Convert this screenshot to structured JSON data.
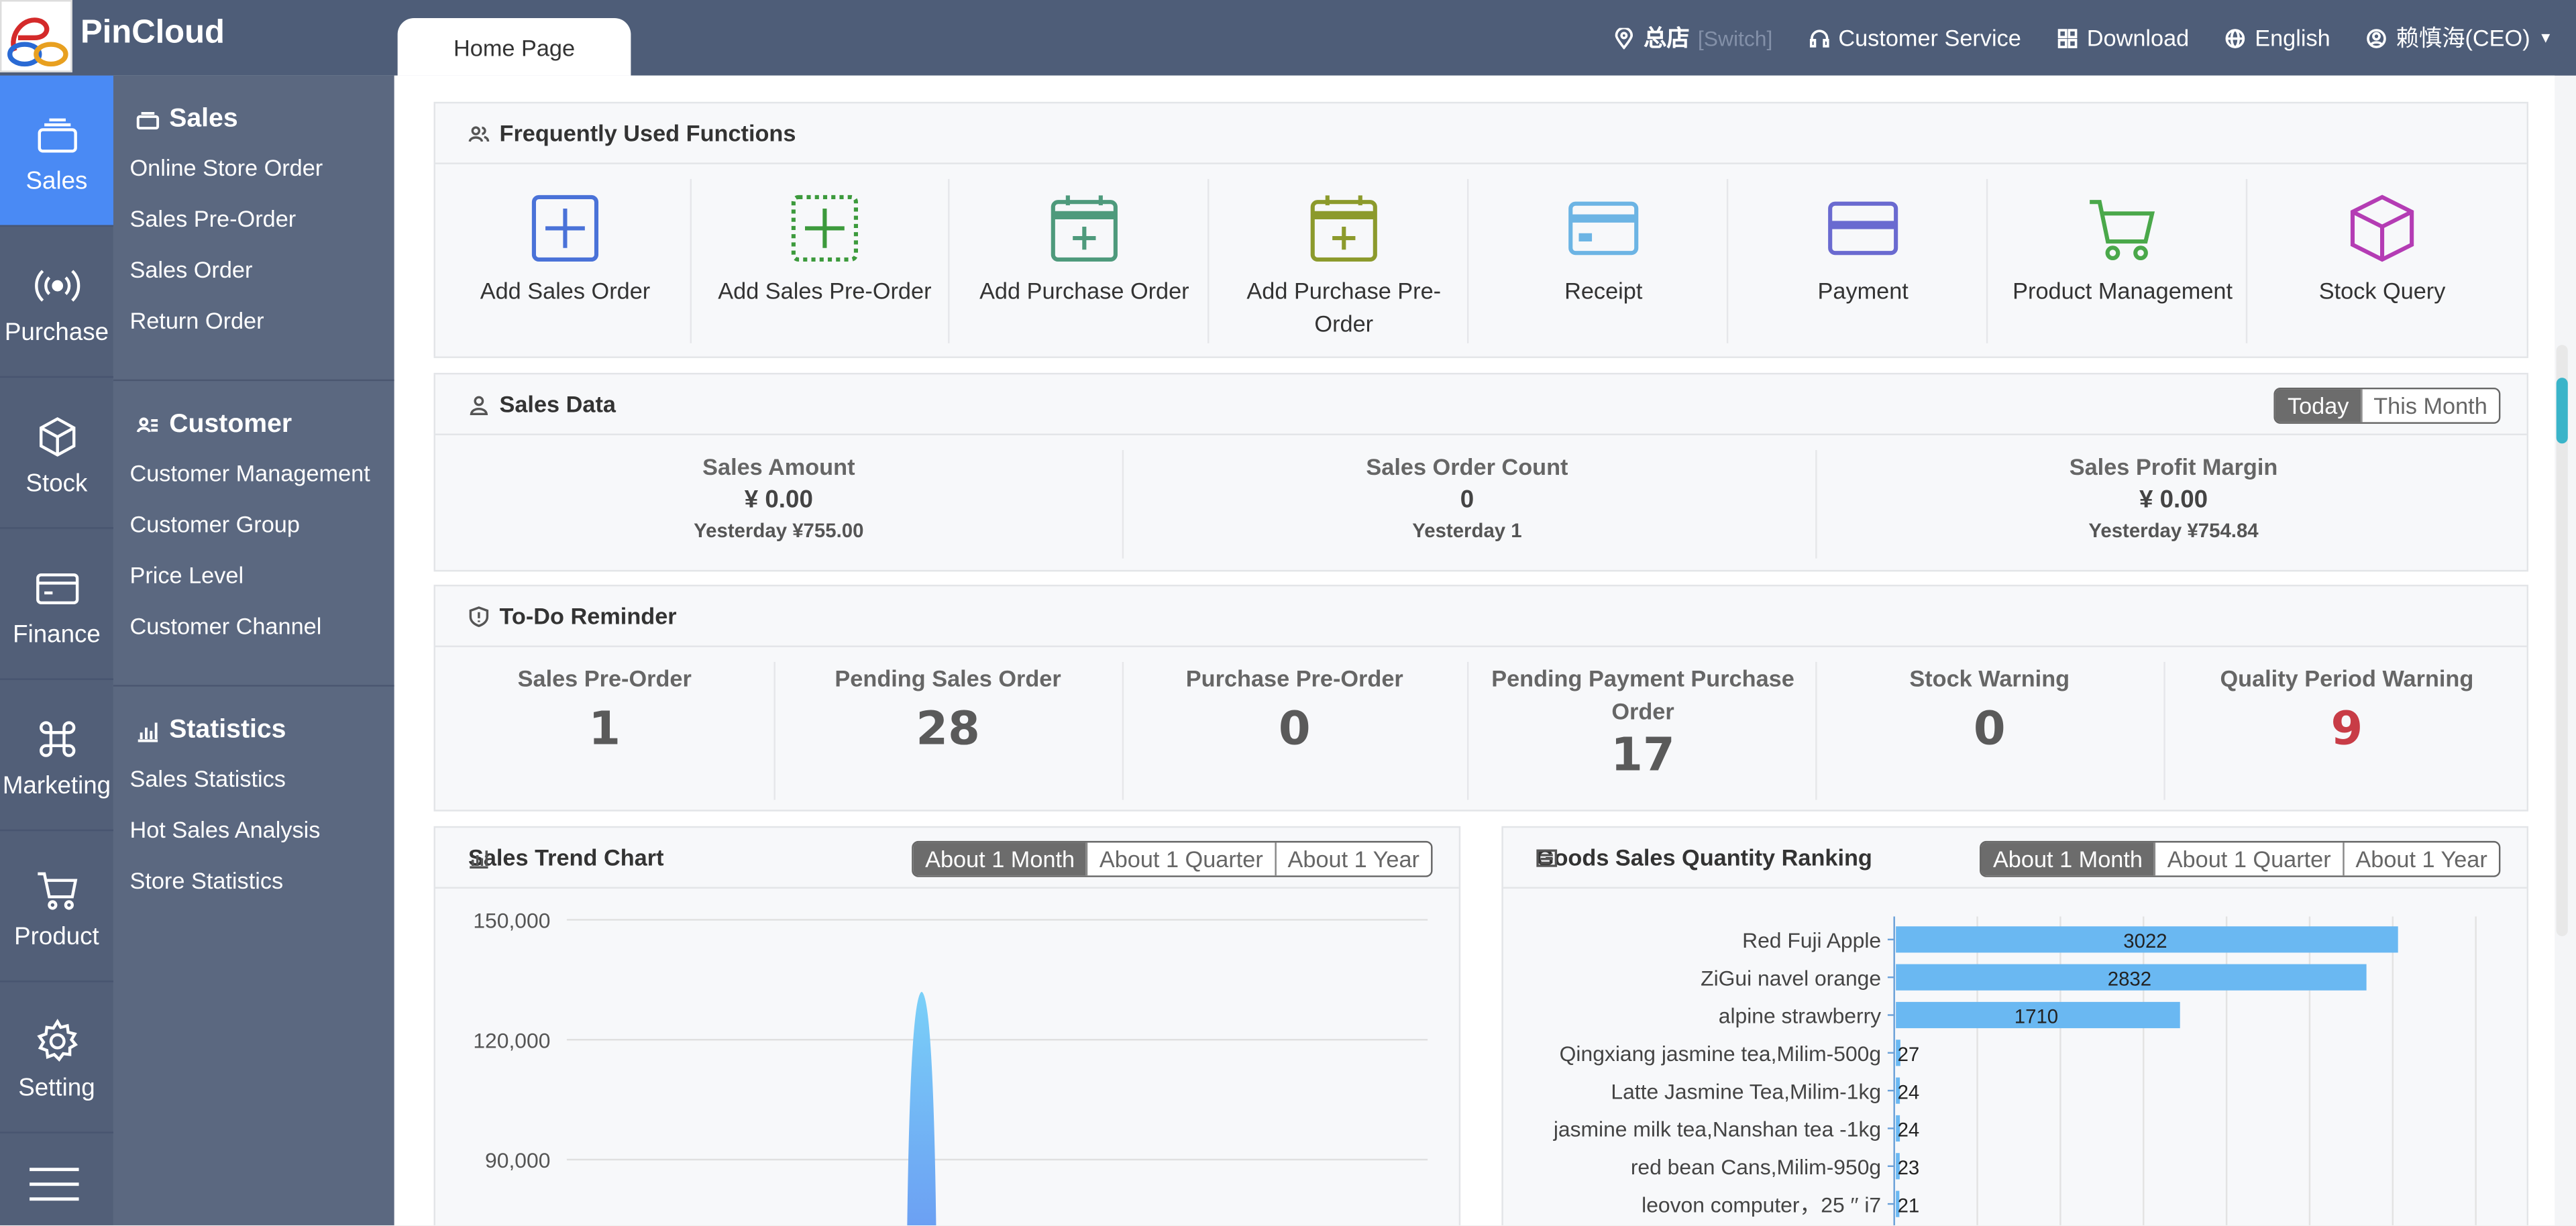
{
  "app": {
    "brand": "PinCloud"
  },
  "tabs": [
    {
      "label": "Home Page"
    }
  ],
  "topbar": {
    "store_name": "总店",
    "store_switch": "[Switch]",
    "customer_service": "Customer Service",
    "download": "Download",
    "language": "English",
    "user": "赖慎海(CEO)"
  },
  "leftnav": [
    {
      "label": "Sales",
      "icon": "sales-icon",
      "active": true
    },
    {
      "label": "Purchase",
      "icon": "broadcast-icon"
    },
    {
      "label": "Stock",
      "icon": "cube-icon"
    },
    {
      "label": "Finance",
      "icon": "card-icon"
    },
    {
      "label": "Marketing",
      "icon": "command-icon"
    },
    {
      "label": "Product",
      "icon": "cart-icon"
    },
    {
      "label": "Setting",
      "icon": "gear-icon"
    }
  ],
  "submenu": {
    "sales": {
      "title": "Sales",
      "items": [
        "Online Store Order",
        "Sales Pre-Order",
        "Sales Order",
        "Return Order"
      ]
    },
    "customer": {
      "title": "Customer",
      "items": [
        "Customer Management",
        "Customer Group",
        "Price Level",
        "Customer Channel"
      ]
    },
    "statistics": {
      "title": "Statistics",
      "items": [
        "Sales Statistics",
        "Hot Sales Analysis",
        "Store Statistics"
      ]
    }
  },
  "functions": {
    "title": "Frequently Used Functions",
    "items": [
      {
        "label": "Add Sales Order",
        "icon": "plus-square-icon",
        "color": "#4a72d8"
      },
      {
        "label": "Add Sales Pre-Order",
        "icon": "dotted-plus-icon",
        "color": "#3c9a3c"
      },
      {
        "label": "Add Purchase Order",
        "icon": "calendar-plus-icon",
        "color": "#4e9a7c"
      },
      {
        "label": "Add Purchase Pre-Order",
        "icon": "calendar-plus-icon",
        "color": "#8c9a2c"
      },
      {
        "label": "Receipt",
        "icon": "card-icon",
        "color": "#6cb4e4"
      },
      {
        "label": "Payment",
        "icon": "card-icon",
        "color": "#6a6ad0"
      },
      {
        "label": "Product Management",
        "icon": "cart-icon",
        "color": "#4aa84a"
      },
      {
        "label": "Stock Query",
        "icon": "cube-icon",
        "color": "#b43cb4"
      }
    ]
  },
  "sales_data": {
    "title": "Sales Data",
    "toggle": [
      "Today",
      "This Month"
    ],
    "stats": [
      {
        "label": "Sales Amount",
        "value": "¥ 0.00",
        "yesterday": "Yesterday ¥755.00"
      },
      {
        "label": "Sales Order Count",
        "value": "0",
        "yesterday": "Yesterday 1"
      },
      {
        "label": "Sales Profit Margin",
        "value": "¥ 0.00",
        "yesterday": "Yesterday ¥754.84"
      }
    ]
  },
  "todo": {
    "title": "To-Do Reminder",
    "items": [
      {
        "label": "Sales Pre-Order",
        "value": "1"
      },
      {
        "label": "Pending Sales Order",
        "value": "28"
      },
      {
        "label": "Purchase Pre-Order",
        "value": "0"
      },
      {
        "label": "Pending Payment Purchase Order",
        "value": "17"
      },
      {
        "label": "Stock Warning",
        "value": "0"
      },
      {
        "label": "Quality Period Warning",
        "value": "9",
        "color": "#c83c46"
      }
    ]
  },
  "trend": {
    "title": "Sales Trend Chart",
    "toggle": [
      "About 1 Month",
      "About 1 Quarter",
      "About 1 Year"
    ]
  },
  "ranking": {
    "title": "Goods Sales Quantity Ranking",
    "toggle": [
      "About 1 Month",
      "About 1 Quarter",
      "About 1 Year"
    ]
  },
  "chart_data": [
    {
      "type": "area",
      "ylim": [
        0,
        150000
      ],
      "yticks": [
        "150,000",
        "120,000",
        "90,000"
      ],
      "peak_value": 132000,
      "color": "#6ab8f2"
    },
    {
      "type": "bar",
      "orientation": "horizontal",
      "categories": [
        "Red Fuji Apple",
        "ZiGui navel orange",
        "alpine strawberry",
        "Qingxiang jasmine tea,Milim-500g",
        "Latte Jasmine Tea,Milim-1kg",
        "jasmine  milk tea,Nanshan tea -1kg",
        "red bean Cans,Milim-950g",
        "leovon  computer，25  ′′   i7"
      ],
      "values": [
        3022,
        2832,
        1710,
        27,
        24,
        24,
        23,
        21
      ],
      "xlim": [
        0,
        3500
      ],
      "color": "#6ab8f2"
    }
  ]
}
